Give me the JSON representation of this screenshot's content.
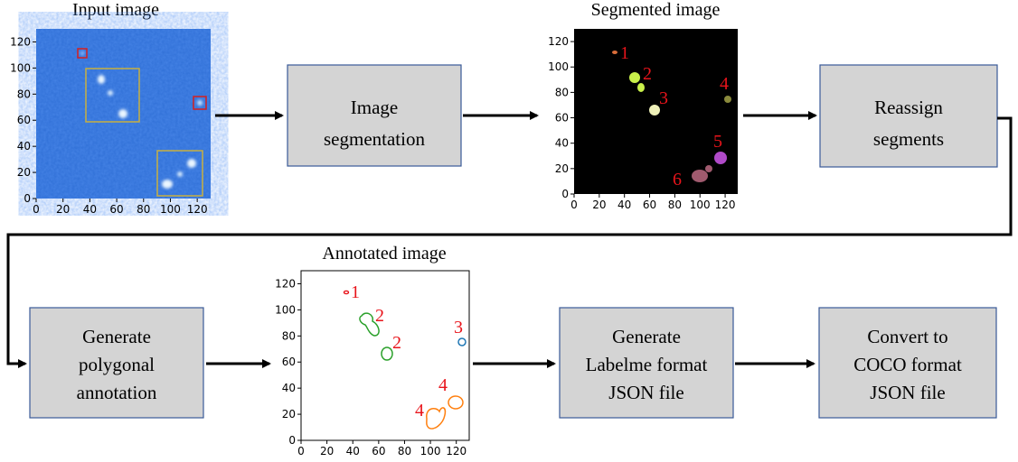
{
  "input_panel": {
    "title": "Input image",
    "ticks_x": [
      "0",
      "20",
      "40",
      "60",
      "80",
      "100",
      "120"
    ],
    "ticks_y": [
      "0",
      "20",
      "40",
      "60",
      "80",
      "100",
      "120"
    ],
    "colors": {
      "background": "#2f6fd6",
      "bright": "#eaf6ff",
      "roi_small": "#d42020",
      "roi_large": "#c8b040"
    }
  },
  "segmented_panel": {
    "title": "Segmented image",
    "ticks_x": [
      "0",
      "20",
      "40",
      "60",
      "80",
      "100",
      "120"
    ],
    "ticks_y": [
      "0",
      "20",
      "40",
      "60",
      "80",
      "100",
      "120"
    ],
    "labels": [
      "1",
      "2",
      "3",
      "4",
      "5",
      "6"
    ],
    "colors": {
      "background": "#000000",
      "seg1": "#d96d3a",
      "seg2": "#c8f04a",
      "seg3": "#eef0b8",
      "seg4": "#8a8a3c",
      "seg5": "#b04ac8",
      "seg6": "#a05a6e"
    }
  },
  "annotated_panel": {
    "title": "Annotated image",
    "ticks_x": [
      "0",
      "20",
      "40",
      "60",
      "80",
      "100",
      "120"
    ],
    "ticks_y": [
      "0",
      "20",
      "40",
      "60",
      "80",
      "100",
      "120"
    ],
    "labels": [
      "1",
      "2",
      "2",
      "3",
      "4",
      "4"
    ],
    "colors": {
      "red": "#e8141b",
      "green": "#2aa02a",
      "blue": "#1f77b4",
      "orange": "#ff7f0e"
    }
  },
  "boxes": {
    "segmentation": [
      "Image",
      "segmentation"
    ],
    "reassign": [
      "Reassign",
      "segments"
    ],
    "polygonal": [
      "Generate",
      "polygonal",
      "annotation"
    ],
    "labelme": [
      "Generate",
      "Labelme format",
      "JSON file"
    ],
    "coco": [
      "Convert to",
      "COCO format",
      "JSON file"
    ]
  },
  "style": {
    "box_fill": "#d4d4d4",
    "box_stroke": "#3a5a98",
    "arrow": "#000000"
  }
}
